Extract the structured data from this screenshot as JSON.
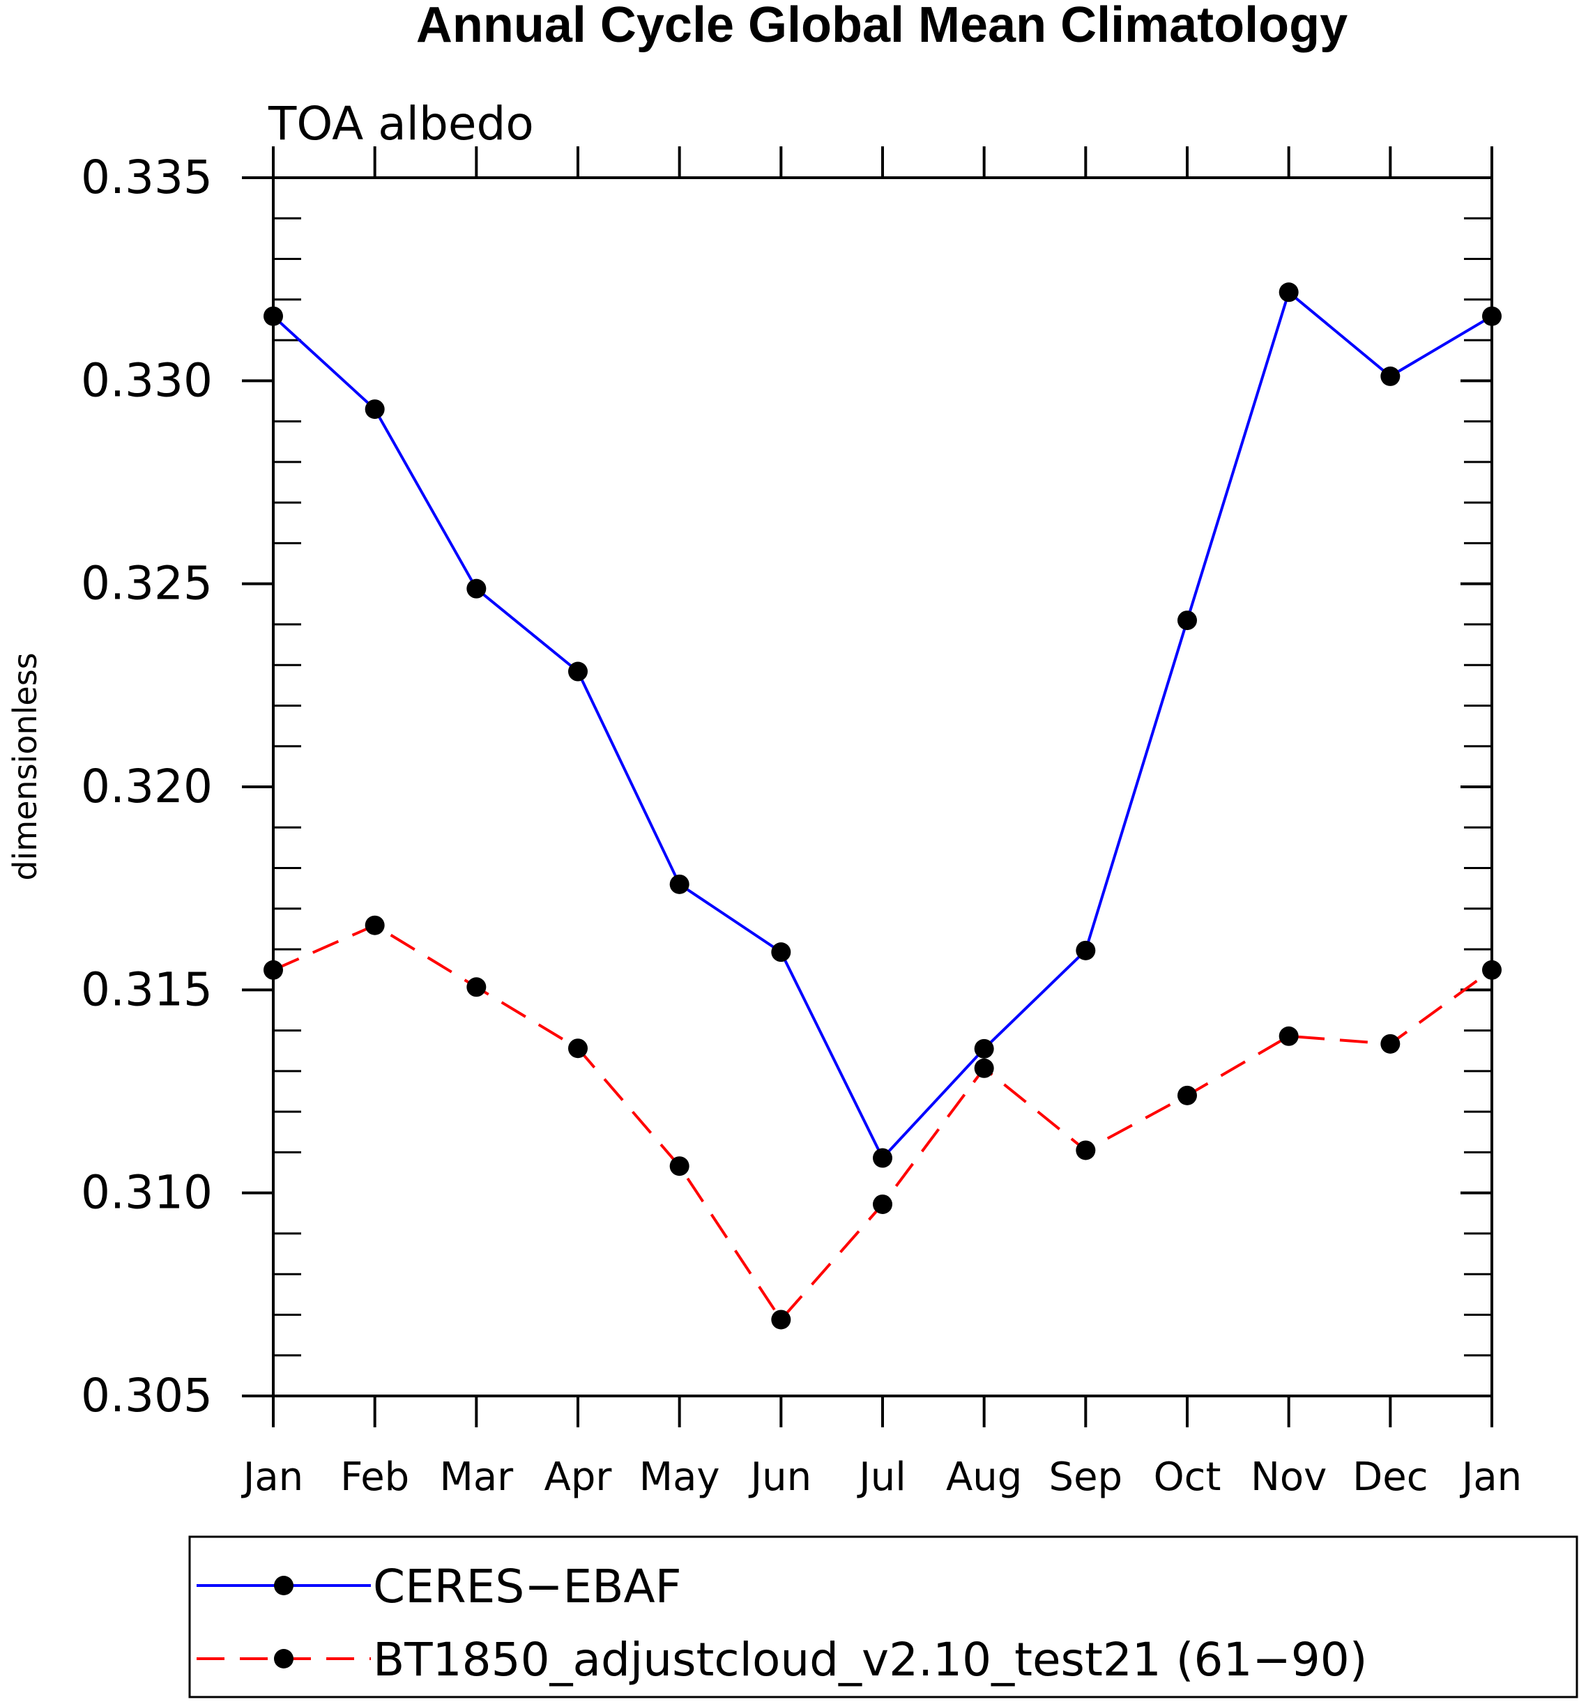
{
  "chart_data": {
    "type": "line",
    "title": "Annual Cycle Global Mean Climatology",
    "subtitle": "TOA albedo",
    "xlabel": "",
    "ylabel": "dimensionless",
    "categories": [
      "Jan",
      "Feb",
      "Mar",
      "Apr",
      "May",
      "Jun",
      "Jul",
      "Aug",
      "Sep",
      "Oct",
      "Nov",
      "Dec",
      "Jan"
    ],
    "ylim": [
      0.305,
      0.335
    ],
    "yticks": [
      "0.305",
      "0.310",
      "0.315",
      "0.320",
      "0.325",
      "0.330",
      "0.335"
    ],
    "grid": false,
    "legend_position": "bottom",
    "series": [
      {
        "name": "CERES−EBAF",
        "color": "#0000ff",
        "line_style": "solid",
        "marker": "filled-circle",
        "values": [
          0.33159,
          0.3293,
          0.32488,
          0.32284,
          0.3176,
          0.31593,
          0.31086,
          0.31355,
          0.31597,
          0.3241,
          0.33218,
          0.33011,
          0.33159
        ]
      },
      {
        "name": "BT1850_adjustcloud_v2.10_test21 (61−90)",
        "color": "#ff0000",
        "line_style": "dashed",
        "marker": "filled-circle",
        "values": [
          0.31549,
          0.31659,
          0.31507,
          0.31356,
          0.31066,
          0.30688,
          0.30972,
          0.31307,
          0.31105,
          0.3124,
          0.31386,
          0.31367,
          0.31549
        ]
      }
    ]
  }
}
